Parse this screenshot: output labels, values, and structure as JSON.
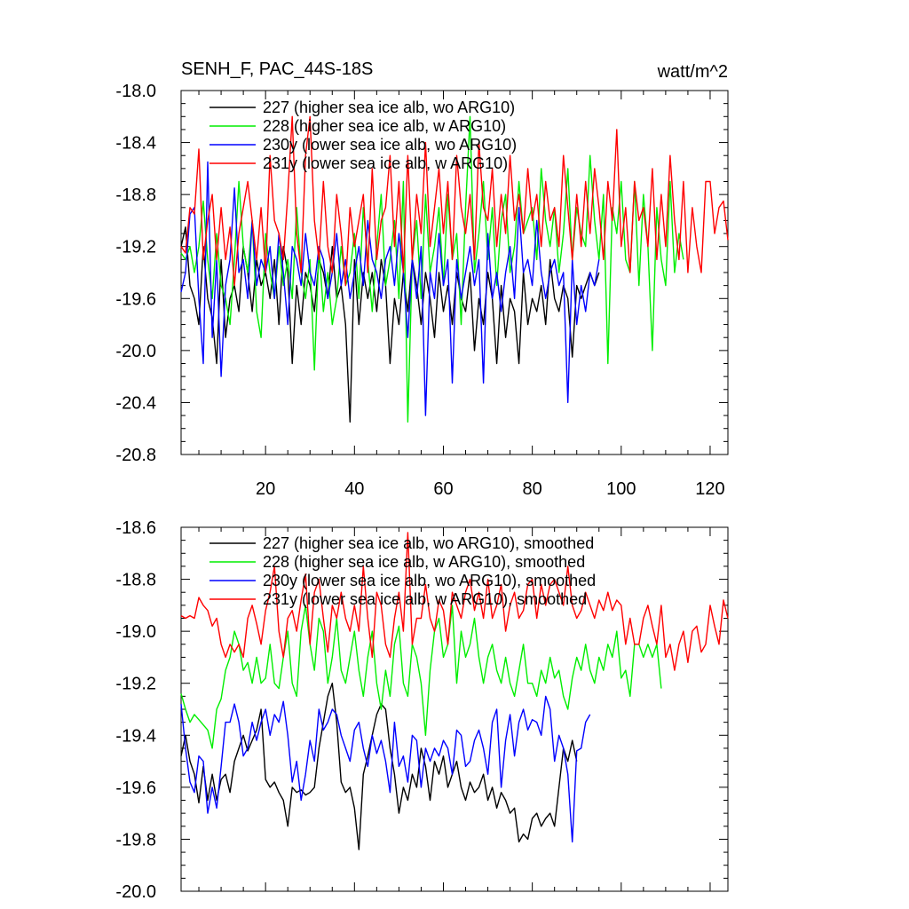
{
  "figure": {
    "title_left": "SENH_F, PAC_44S-18S",
    "title_right": "watt/m^2"
  },
  "colors": {
    "s227": "#000000",
    "s228": "#00ee00",
    "s230y": "#0000ff",
    "s231y": "#ff0000"
  },
  "chart_data": [
    {
      "type": "line",
      "title": "SENH_F, PAC_44S-18S",
      "units": "watt/m^2",
      "xlim": [
        1,
        124
      ],
      "ylim": [
        -20.8,
        -18.0
      ],
      "x_ticks": [
        20,
        40,
        60,
        80,
        100,
        120
      ],
      "x_tick_labels": [
        "20",
        "40",
        "60",
        "80",
        "100",
        "120"
      ],
      "y_ticks": [
        -18.0,
        -18.4,
        -18.8,
        -19.2,
        -19.6,
        -20.0,
        -20.4,
        -20.8
      ],
      "y_tick_labels": [
        "-18.0",
        "-18.4",
        "-18.8",
        "-19.2",
        "-19.6",
        "-20.0",
        "-20.4",
        "-20.8"
      ],
      "legend_position": "top-left",
      "series": [
        {
          "name": "227 (higher sea ice alb, wo ARG10)",
          "color_key": "s227",
          "values": [
            -19.2,
            -19.05,
            -19.5,
            -19.6,
            -19.8,
            -19.2,
            -19.6,
            -19.75,
            -20.1,
            -19.3,
            -19.9,
            -19.6,
            -19.5,
            -19.7,
            -19.2,
            -19.4,
            -19.7,
            -19.3,
            -19.5,
            -19.4,
            -19.6,
            -19.3,
            -19.8,
            -19.2,
            -19.4,
            -20.1,
            -19.5,
            -19.8,
            -19.4,
            -19.5,
            -19.7,
            -19.3,
            -19.4,
            -19.6,
            -19.2,
            -19.6,
            -19.5,
            -19.8,
            -20.55,
            -19.3,
            -19.8,
            -19.4,
            -19.6,
            -19.4,
            -19.7,
            -19.3,
            -19.5,
            -20.1,
            -19.6,
            -19.8,
            -19.4,
            -19.7,
            -19.3,
            -19.5,
            -19.8,
            -19.4,
            -19.6,
            -19.9,
            -19.4,
            -19.7,
            -19.5,
            -19.8,
            -19.4,
            -19.6,
            -19.7,
            -19.4,
            -20.0,
            -19.6,
            -19.8,
            -19.4,
            -19.6,
            -20.1,
            -19.5,
            -19.9,
            -19.6,
            -19.7,
            -20.1,
            -19.4,
            -19.8,
            -19.6,
            -19.7,
            -19.5,
            -19.8,
            -19.3,
            -19.6,
            -19.7,
            -19.5,
            -19.6,
            -20.05,
            -19.5,
            -19.6,
            -19.5,
            -19.4,
            -19.5,
            -19.4
          ]
        },
        {
          "name": "228 (higher sea ice alb, w ARG10)",
          "color_key": "s228",
          "values": [
            -19.25,
            -19.3,
            -19.2,
            -19.4,
            -19.2,
            -18.85,
            -19.3,
            -19.6,
            -19.1,
            -19.5,
            -19.6,
            -19.8,
            -19.3,
            -18.7,
            -19.2,
            -19.4,
            -19.0,
            -19.7,
            -19.9,
            -19.1,
            -19.4,
            -19.6,
            -19.2,
            -19.5,
            -19.3,
            -19.6,
            -18.9,
            -19.4,
            -19.6,
            -19.3,
            -20.15,
            -19.2,
            -19.7,
            -19.4,
            -19.8,
            -19.6,
            -19.2,
            -19.5,
            -19.4,
            -19.1,
            -19.6,
            -18.9,
            -19.3,
            -19.7,
            -19.2,
            -18.8,
            -19.5,
            -19.3,
            -19.0,
            -19.6,
            -18.7,
            -20.55,
            -19.3,
            -19.0,
            -19.6,
            -18.8,
            -19.4,
            -19.2,
            -18.9,
            -19.5,
            -18.8,
            -19.3,
            -19.1,
            -19.8,
            -18.9,
            -18.2,
            -19.4,
            -19.1,
            -18.7,
            -19.3,
            -18.9,
            -19.5,
            -19.0,
            -18.8,
            -19.4,
            -19.2,
            -18.7,
            -19.1,
            -19.0,
            -18.9,
            -19.3,
            -18.6,
            -19.0,
            -19.2,
            -18.9,
            -19.4,
            -19.1,
            -18.6,
            -19.3,
            -18.9,
            -19.1,
            -19.2,
            -18.5,
            -19.0,
            -19.3,
            -18.8,
            -20.1,
            -18.9,
            -19.1,
            -18.7,
            -19.3,
            -19.4,
            -18.7,
            -19.5,
            -18.8,
            -19.2,
            -20.0,
            -18.9,
            -19.3,
            -19.5,
            -18.7,
            -19.4,
            -19.1,
            -19.3
          ]
        },
        {
          "name": "230y (lower sea ice alb, wo ARG10)",
          "color_key": "s230y",
          "values": [
            -19.55,
            -19.4,
            -18.95,
            -18.9,
            -19.6,
            -20.1,
            -18.55,
            -19.9,
            -19.3,
            -20.2,
            -19.5,
            -19.3,
            -18.75,
            -19.4,
            -19.3,
            -19.6,
            -19.0,
            -19.5,
            -19.3,
            -19.4,
            -19.2,
            -19.6,
            -19.1,
            -19.4,
            -19.8,
            -19.2,
            -19.3,
            -19.5,
            -19.1,
            -19.4,
            -19.5,
            -19.2,
            -19.3,
            -19.6,
            -19.4,
            -19.1,
            -19.5,
            -19.3,
            -19.6,
            -19.4,
            -19.2,
            -19.5,
            -19.0,
            -19.3,
            -19.4,
            -19.6,
            -19.3,
            -19.2,
            -19.5,
            -19.1,
            -19.4,
            -19.9,
            -19.3,
            -19.6,
            -19.2,
            -20.5,
            -19.4,
            -19.6,
            -19.1,
            -19.5,
            -19.3,
            -20.25,
            -19.3,
            -19.6,
            -19.4,
            -19.2,
            -19.5,
            -19.3,
            -20.25,
            -19.1,
            -19.6,
            -19.4,
            -19.7,
            -19.4,
            -19.2,
            -19.6,
            -18.9,
            -19.4,
            -19.3,
            -19.5,
            -19.0,
            -19.4,
            -19.6,
            -19.4,
            -19.3,
            -19.5,
            -19.4,
            -20.4,
            -19.3,
            -19.8,
            -19.5,
            -19.7,
            -19.4,
            -19.5,
            -19.3
          ]
        },
        {
          "name": "231y (lower sea ice alb, w ARG10)",
          "color_key": "s231y",
          "values": [
            -19.2,
            -19.25,
            -18.9,
            -18.95,
            -18.45,
            -19.3,
            -19.0,
            -18.8,
            -19.3,
            -18.9,
            -19.3,
            -19.05,
            -19.5,
            -19.1,
            -18.9,
            -18.7,
            -19.0,
            -19.3,
            -18.9,
            -19.4,
            -18.5,
            -19.0,
            -19.1,
            -19.3,
            -18.8,
            -18.2,
            -19.1,
            -19.4,
            -18.5,
            -18.2,
            -19.0,
            -19.3,
            -18.7,
            -19.2,
            -19.4,
            -18.8,
            -19.1,
            -19.5,
            -18.9,
            -19.2,
            -19.0,
            -18.8,
            -19.4,
            -18.6,
            -19.3,
            -19.0,
            -18.9,
            -18.5,
            -19.2,
            -18.7,
            -19.4,
            -18.5,
            -19.3,
            -18.8,
            -19.1,
            -18.4,
            -19.2,
            -18.9,
            -18.6,
            -19.1,
            -18.7,
            -19.3,
            -18.5,
            -18.9,
            -19.1,
            -18.8,
            -19.3,
            -18.4,
            -18.9,
            -19.0,
            -18.6,
            -19.2,
            -18.8,
            -19.1,
            -18.5,
            -19.0,
            -18.8,
            -19.1,
            -18.6,
            -19.0,
            -18.8,
            -19.2,
            -18.7,
            -19.0,
            -18.9,
            -19.2,
            -18.5,
            -18.9,
            -19.3,
            -18.8,
            -19.2,
            -18.7,
            -19.1,
            -18.6,
            -18.9,
            -19.3,
            -18.7,
            -19.0,
            -18.3,
            -19.2,
            -18.9,
            -19.4,
            -18.7,
            -19.0,
            -18.9,
            -19.2,
            -18.6,
            -19.3,
            -18.8,
            -19.2,
            -18.5,
            -19.0,
            -19.3,
            -18.7,
            -19.4,
            -18.9,
            -19.2,
            -19.4,
            -18.7,
            -18.7,
            -19.1,
            -18.9,
            -18.85,
            -19.15
          ]
        }
      ]
    },
    {
      "type": "line",
      "title": "",
      "xlim": [
        1,
        124
      ],
      "ylim": [
        -20.0,
        -18.6
      ],
      "x_ticks": [
        20,
        40,
        60,
        80,
        100,
        120
      ],
      "y_ticks": [
        -18.6,
        -18.8,
        -19.0,
        -19.2,
        -19.4,
        -19.6,
        -19.8,
        -20.0
      ],
      "y_tick_labels": [
        "-18.6",
        "-18.8",
        "-19.0",
        "-19.2",
        "-19.4",
        "-19.6",
        "-19.8",
        "-20.0"
      ],
      "legend_position": "top-left",
      "series": [
        {
          "name": "227 (higher sea ice alb, wo ARG10), smoothed",
          "color_key": "s227",
          "values": [
            -19.48,
            -19.4,
            -19.5,
            -19.55,
            -19.66,
            -19.52,
            -19.65,
            -19.55,
            -19.65,
            -19.57,
            -19.55,
            -19.62,
            -19.5,
            -19.45,
            -19.4,
            -19.46,
            -19.42,
            -19.38,
            -19.3,
            -19.57,
            -19.6,
            -19.58,
            -19.62,
            -19.65,
            -19.75,
            -19.6,
            -19.62,
            -19.61,
            -19.63,
            -19.62,
            -19.6,
            -19.45,
            -19.35,
            -19.25,
            -19.2,
            -19.35,
            -19.58,
            -19.62,
            -19.6,
            -19.68,
            -19.84,
            -19.55,
            -19.48,
            -19.4,
            -19.32,
            -19.28,
            -19.3,
            -19.45,
            -19.55,
            -19.7,
            -19.6,
            -19.65,
            -19.55,
            -19.6,
            -19.45,
            -19.52,
            -19.65,
            -19.5,
            -19.55,
            -19.48,
            -19.6,
            -19.55,
            -19.5,
            -19.6,
            -19.65,
            -19.58,
            -19.62,
            -19.6,
            -19.55,
            -19.65,
            -19.6,
            -19.68,
            -19.62,
            -19.65,
            -19.7,
            -19.68,
            -19.81,
            -19.78,
            -19.8,
            -19.72,
            -19.7,
            -19.75,
            -19.72,
            -19.7,
            -19.75,
            -19.6,
            -19.45,
            -19.5,
            -19.42,
            -19.5
          ]
        },
        {
          "name": "228 (higher sea ice alb, w ARG10), smoothed",
          "color_key": "s228",
          "values": [
            -19.24,
            -19.3,
            -19.35,
            -19.32,
            -19.34,
            -19.36,
            -19.38,
            -19.45,
            -19.3,
            -19.26,
            -19.15,
            -19.1,
            -19.0,
            -19.05,
            -19.15,
            -19.12,
            -19.2,
            -19.1,
            -19.2,
            -19.18,
            -19.05,
            -19.2,
            -19.22,
            -19.1,
            -19.0,
            -19.2,
            -19.25,
            -19.0,
            -18.9,
            -19.05,
            -19.15,
            -18.95,
            -19.0,
            -19.2,
            -19.1,
            -18.95,
            -19.15,
            -19.2,
            -19.1,
            -19.0,
            -19.15,
            -19.25,
            -19.1,
            -19.0,
            -19.2,
            -19.3,
            -19.15,
            -19.25,
            -19.05,
            -18.98,
            -19.2,
            -19.25,
            -19.05,
            -19.1,
            -19.2,
            -19.4,
            -19.15,
            -19.0,
            -18.95,
            -19.1,
            -19.05,
            -18.9,
            -19.2,
            -19.0,
            -19.1,
            -19.05,
            -18.95,
            -19.1,
            -19.2,
            -19.1,
            -19.05,
            -19.15,
            -19.2,
            -19.1,
            -19.2,
            -19.25,
            -19.15,
            -19.05,
            -19.2,
            -19.2,
            -19.25,
            -19.15,
            -19.2,
            -19.1,
            -19.18,
            -19.15,
            -19.25,
            -19.3,
            -19.18,
            -19.1,
            -19.15,
            -19.05,
            -19.15,
            -19.2,
            -19.1,
            -19.15,
            -19.05,
            -19.1,
            -19.0,
            -19.18,
            -19.15,
            -19.25,
            -19.05,
            -19.05,
            -19.1,
            -19.05,
            -19.1,
            -19.05,
            -19.22
          ]
        },
        {
          "name": "230y (lower sea ice alb, wo ARG10), smoothed",
          "color_key": "s230y",
          "values": [
            -19.28,
            -19.45,
            -19.58,
            -19.62,
            -19.48,
            -19.5,
            -19.7,
            -19.6,
            -19.68,
            -19.52,
            -19.35,
            -19.35,
            -19.28,
            -19.35,
            -19.48,
            -19.45,
            -19.35,
            -19.42,
            -19.35,
            -19.3,
            -19.4,
            -19.32,
            -19.35,
            -19.27,
            -19.4,
            -19.58,
            -19.5,
            -19.65,
            -19.55,
            -19.42,
            -19.5,
            -19.3,
            -19.38,
            -19.35,
            -19.3,
            -19.32,
            -19.4,
            -19.45,
            -19.5,
            -19.38,
            -19.35,
            -19.45,
            -19.52,
            -19.4,
            -19.47,
            -19.42,
            -19.5,
            -19.62,
            -19.35,
            -19.52,
            -19.48,
            -19.58,
            -19.4,
            -19.42,
            -19.6,
            -19.45,
            -19.5,
            -19.45,
            -19.48,
            -19.42,
            -19.45,
            -19.55,
            -19.38,
            -19.4,
            -19.52,
            -19.5,
            -19.42,
            -19.38,
            -19.45,
            -19.55,
            -19.35,
            -19.3,
            -19.6,
            -19.42,
            -19.32,
            -19.48,
            -19.35,
            -19.3,
            -19.38,
            -19.34,
            -19.35,
            -19.4,
            -19.25,
            -19.3,
            -19.5,
            -19.4,
            -19.45,
            -19.55,
            -19.81,
            -19.46,
            -19.45,
            -19.35,
            -19.32
          ]
        },
        {
          "name": "231y (lower sea ice alb, w ARG10), smoothed",
          "color_key": "s231y",
          "values": [
            -18.94,
            -18.95,
            -18.94,
            -18.95,
            -18.87,
            -18.9,
            -18.92,
            -18.98,
            -18.95,
            -19.05,
            -19.1,
            -19.05,
            -19.08,
            -19.05,
            -19.1,
            -18.95,
            -18.9,
            -18.97,
            -19.05,
            -18.92,
            -18.85,
            -18.75,
            -19.0,
            -19.1,
            -18.95,
            -18.92,
            -19.0,
            -18.88,
            -18.78,
            -19.05,
            -18.85,
            -18.8,
            -18.95,
            -19.08,
            -18.9,
            -18.95,
            -18.85,
            -18.95,
            -19.0,
            -18.9,
            -19.0,
            -18.75,
            -18.95,
            -19.1,
            -18.85,
            -18.9,
            -19.05,
            -19.1,
            -18.95,
            -18.85,
            -19.0,
            -18.62,
            -19.05,
            -18.95,
            -18.95,
            -18.82,
            -18.95,
            -19.0,
            -18.88,
            -18.92,
            -19.05,
            -18.85,
            -18.9,
            -18.95,
            -18.85,
            -18.8,
            -18.92,
            -18.85,
            -18.95,
            -18.8,
            -18.95,
            -18.9,
            -18.82,
            -19.0,
            -18.9,
            -18.85,
            -18.95,
            -18.92,
            -18.82,
            -18.8,
            -18.95,
            -18.82,
            -18.9,
            -18.82,
            -18.8,
            -18.85,
            -18.9,
            -18.75,
            -18.9,
            -18.95,
            -18.92,
            -18.85,
            -18.9,
            -18.95,
            -18.88,
            -18.92,
            -18.85,
            -18.92,
            -18.88,
            -18.9,
            -19.05,
            -18.95,
            -19.05,
            -19.05,
            -18.95,
            -18.9,
            -18.98,
            -19.05,
            -18.9,
            -19.1,
            -19.05,
            -19.15,
            -19.05,
            -19.0,
            -19.12,
            -19.0,
            -18.98,
            -19.08,
            -19.05,
            -18.9,
            -18.98,
            -19.05,
            -18.88,
            -18.95
          ]
        }
      ]
    }
  ]
}
